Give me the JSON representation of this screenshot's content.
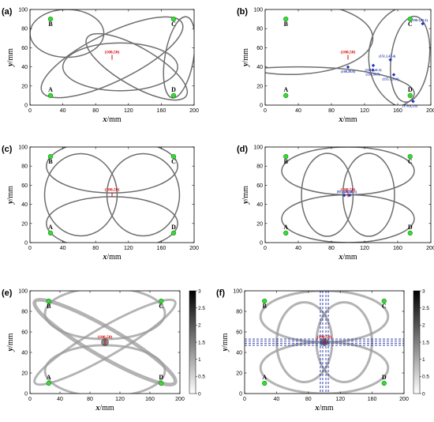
{
  "chart_data": [
    {
      "panel": "(a)",
      "type": "scatter",
      "xlabel": "x/mm",
      "ylabel": "y/mm",
      "xlim": [
        0,
        200
      ],
      "ylim": [
        0,
        100
      ],
      "xticks": [
        0,
        40,
        80,
        120,
        160,
        200
      ],
      "yticks": [
        0,
        20,
        40,
        60,
        80,
        100
      ],
      "receivers": [
        {
          "label": "A",
          "x": 25,
          "y": 10
        },
        {
          "label": "B",
          "x": 25,
          "y": 90
        },
        {
          "label": "C",
          "x": 175,
          "y": 90
        },
        {
          "label": "D",
          "x": 175,
          "y": 10
        }
      ],
      "source": {
        "label": "(100,50)",
        "x": 100,
        "y": 50
      },
      "ellipses": [
        {
          "cx": 45,
          "cy": 75,
          "rx": 45,
          "ry": 25,
          "angle": 0,
          "width": 0
        },
        {
          "cx": 110,
          "cy": 40,
          "rx": 70,
          "ry": 25,
          "angle": 0,
          "width": 0
        },
        {
          "cx": 130,
          "cy": 40,
          "rx": 70,
          "ry": 20,
          "angle": -30,
          "width": 0
        },
        {
          "cx": 100,
          "cy": 50,
          "rx": 95,
          "ry": 25,
          "angle": 26,
          "width": 0
        },
        {
          "cx": 182,
          "cy": 50,
          "rx": 50,
          "ry": 15,
          "angle": 80,
          "width": 0
        }
      ]
    },
    {
      "panel": "(b)",
      "type": "scatter",
      "xlabel": "x/mm",
      "ylabel": "y/mm",
      "xlim": [
        0,
        200
      ],
      "ylim": [
        0,
        100
      ],
      "xticks": [
        0,
        40,
        80,
        120,
        160,
        200
      ],
      "yticks": [
        0,
        20,
        40,
        60,
        80,
        100
      ],
      "receivers": [
        {
          "label": "A",
          "x": 25,
          "y": 10
        },
        {
          "label": "B",
          "x": 25,
          "y": 90
        },
        {
          "label": "C",
          "x": 175,
          "y": 90
        },
        {
          "label": "D",
          "x": 175,
          "y": 10
        }
      ],
      "source": {
        "label": "(100,50)",
        "x": 100,
        "y": 50
      },
      "intersections": [
        {
          "label": "(100,39.8)",
          "x": 100,
          "y": 39.8
        },
        {
          "label": "(130.5,41.5)",
          "x": 130.5,
          "y": 41.5
        },
        {
          "label": "(130,36.7)",
          "x": 130,
          "y": 36.7
        },
        {
          "label": "(151.1,47.4)",
          "x": 151.1,
          "y": 47.4
        },
        {
          "label": "(155.3,31.8)",
          "x": 155.3,
          "y": 31.8
        },
        {
          "label": "(178.6,3.9)",
          "x": 178.6,
          "y": 3.9
        },
        {
          "label": "(190.1,85.1)",
          "x": 190.1,
          "y": 85.1
        }
      ],
      "ellipses": [
        {
          "cx": 30,
          "cy": 70,
          "rx": 100,
          "ry": 38,
          "angle": 0,
          "width": 0
        },
        {
          "cx": 40,
          "cy": 12,
          "rx": 140,
          "ry": 28,
          "angle": 0,
          "width": 0
        },
        {
          "cx": 175,
          "cy": 48,
          "rx": 52,
          "ry": 20,
          "angle": 83,
          "width": 0
        },
        {
          "cx": 180,
          "cy": 50,
          "rx": 55,
          "ry": 55,
          "angle": 0,
          "width": 0
        }
      ]
    },
    {
      "panel": "(c)",
      "type": "scatter",
      "xlabel": "x/mm",
      "ylabel": "y/mm",
      "xlim": [
        0,
        200
      ],
      "ylim": [
        0,
        100
      ],
      "xticks": [
        0,
        40,
        80,
        120,
        160,
        200
      ],
      "yticks": [
        0,
        20,
        40,
        60,
        80,
        100
      ],
      "receivers": [
        {
          "label": "A",
          "x": 25,
          "y": 10
        },
        {
          "label": "B",
          "x": 25,
          "y": 90
        },
        {
          "label": "C",
          "x": 175,
          "y": 90
        },
        {
          "label": "D",
          "x": 175,
          "y": 10
        }
      ],
      "source": {
        "label": "(100,50)",
        "x": 100,
        "y": 50
      },
      "ellipses": [
        {
          "cx": 100,
          "cy": 80,
          "rx": 80,
          "ry": 28,
          "angle": 0,
          "width": 0
        },
        {
          "cx": 100,
          "cy": 20,
          "rx": 80,
          "ry": 28,
          "angle": 0,
          "width": 0
        },
        {
          "cx": 62,
          "cy": 50,
          "rx": 50,
          "ry": 38,
          "angle": 90,
          "width": 0
        },
        {
          "cx": 138,
          "cy": 50,
          "rx": 50,
          "ry": 38,
          "angle": 90,
          "width": 0
        }
      ]
    },
    {
      "panel": "(d)",
      "type": "scatter",
      "xlabel": "x/mm",
      "ylabel": "y/mm",
      "xlim": [
        0,
        200
      ],
      "ylim": [
        0,
        100
      ],
      "xticks": [
        0,
        40,
        80,
        120,
        160,
        200
      ],
      "yticks": [
        0,
        20,
        40,
        60,
        80,
        100
      ],
      "receivers": [
        {
          "label": "A",
          "x": 25,
          "y": 10
        },
        {
          "label": "B",
          "x": 25,
          "y": 90
        },
        {
          "label": "C",
          "x": 175,
          "y": 90
        },
        {
          "label": "D",
          "x": 175,
          "y": 10
        }
      ],
      "source": {
        "label": "(100,50)",
        "x": 100,
        "y": 50
      },
      "intersections": [
        {
          "label": "(95.5,49.5)",
          "x": 95.5,
          "y": 49.5
        },
        {
          "label": "(102,49.5)",
          "x": 102,
          "y": 49.5
        }
      ],
      "ellipses": [
        {
          "cx": 100,
          "cy": 75,
          "rx": 80,
          "ry": 25,
          "angle": 0,
          "width": 0
        },
        {
          "cx": 100,
          "cy": 25,
          "rx": 80,
          "ry": 25,
          "angle": 0,
          "width": 0
        },
        {
          "cx": 75,
          "cy": 50,
          "rx": 50,
          "ry": 27,
          "angle": 90,
          "width": 0
        },
        {
          "cx": 125,
          "cy": 50,
          "rx": 50,
          "ry": 27,
          "angle": 90,
          "width": 0
        }
      ]
    },
    {
      "panel": "(e)",
      "type": "heatmap",
      "xlabel": "x/mm",
      "ylabel": "y/mm",
      "xlim": [
        0,
        200
      ],
      "ylim": [
        0,
        100
      ],
      "xticks": [
        0,
        40,
        80,
        120,
        160,
        200
      ],
      "yticks": [
        0,
        20,
        40,
        60,
        80,
        100
      ],
      "colorbar": {
        "min": 0,
        "max": 3,
        "ticks": [
          0,
          0.5,
          1,
          1.5,
          2,
          2.5,
          3
        ]
      },
      "receivers": [
        {
          "label": "A",
          "x": 25,
          "y": 10
        },
        {
          "label": "B",
          "x": 25,
          "y": 90
        },
        {
          "label": "C",
          "x": 175,
          "y": 90
        },
        {
          "label": "D",
          "x": 175,
          "y": 10
        }
      ],
      "source": {
        "label": "(100,50)",
        "x": 100,
        "y": 50
      },
      "ellipses": [
        {
          "cx": 100,
          "cy": 78,
          "rx": 80,
          "ry": 25,
          "angle": 0,
          "width": 3
        },
        {
          "cx": 100,
          "cy": 22,
          "rx": 80,
          "ry": 25,
          "angle": 0,
          "width": 3
        },
        {
          "cx": 100,
          "cy": 50,
          "rx": 108,
          "ry": 14,
          "angle": -30,
          "width": 5
        },
        {
          "cx": 100,
          "cy": 50,
          "rx": 108,
          "ry": 14,
          "angle": 30,
          "width": 3
        }
      ]
    },
    {
      "panel": "(f)",
      "type": "heatmap",
      "xlabel": "x/mm",
      "ylabel": "y/mm",
      "xlim": [
        0,
        200
      ],
      "ylim": [
        0,
        100
      ],
      "xticks": [
        0,
        40,
        80,
        120,
        160,
        200
      ],
      "yticks": [
        0,
        20,
        40,
        60,
        80,
        100
      ],
      "colorbar": {
        "min": 0,
        "max": 3,
        "ticks": [
          0,
          0.5,
          1,
          1.5,
          2,
          2.5,
          3
        ]
      },
      "receivers": [
        {
          "label": "A",
          "x": 25,
          "y": 10
        },
        {
          "label": "B",
          "x": 25,
          "y": 90
        },
        {
          "label": "C",
          "x": 175,
          "y": 90
        },
        {
          "label": "D",
          "x": 175,
          "y": 10
        }
      ],
      "source": {
        "label": "(100,50)",
        "x": 100,
        "y": 50
      },
      "ellipses": [
        {
          "cx": 100,
          "cy": 75,
          "rx": 80,
          "ry": 25,
          "angle": 0,
          "width": 3
        },
        {
          "cx": 100,
          "cy": 25,
          "rx": 80,
          "ry": 25,
          "angle": 0,
          "width": 3
        },
        {
          "cx": 75,
          "cy": 50,
          "rx": 50,
          "ry": 27,
          "angle": 90,
          "width": 3
        },
        {
          "cx": 125,
          "cy": 50,
          "rx": 50,
          "ry": 27,
          "angle": 90,
          "width": 3
        }
      ],
      "dashed_lines": {
        "x": [
          95,
          98,
          102,
          105
        ],
        "y": [
          47,
          49,
          51,
          53
        ]
      }
    }
  ],
  "colors": {
    "ellipse": "#6e6e6e",
    "receiver_fill": "#33dd33",
    "receiver_stroke": "#118811",
    "source_marker": "#e00000",
    "intersection_marker": "#2233bb",
    "dashed_line": "#1a2aa0"
  }
}
